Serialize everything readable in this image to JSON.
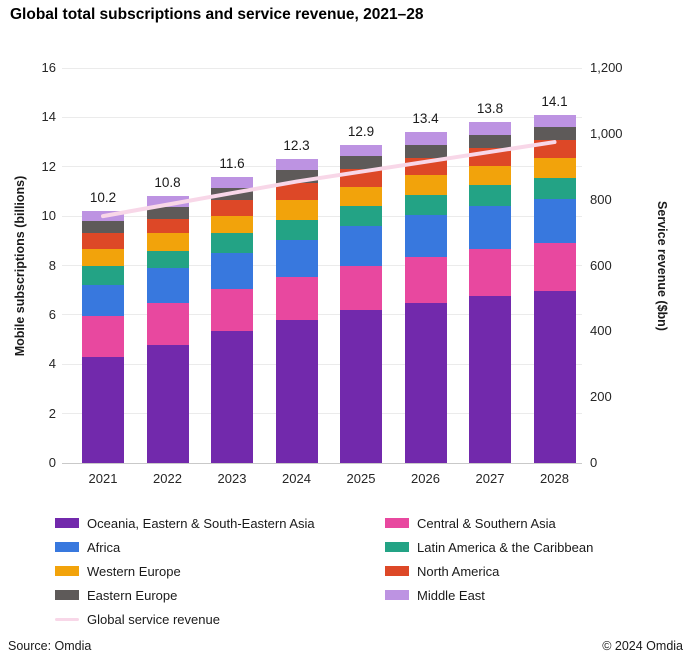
{
  "title": "Global total subscriptions and service revenue, 2021–28",
  "chart_data": {
    "type": "bar",
    "subtype": "stacked_bars_with_line_overlay",
    "title": "Global total subscriptions and service revenue, 2021–28",
    "categories": [
      "2021",
      "2022",
      "2023",
      "2024",
      "2025",
      "2026",
      "2027",
      "2028"
    ],
    "series": [
      {
        "name": "Oceania, Eastern & South-Eastern Asia",
        "color": "#7229AC",
        "values": [
          4.3,
          4.8,
          5.35,
          5.8,
          6.2,
          6.5,
          6.75,
          6.95
        ]
      },
      {
        "name": "Central & Southern Asia",
        "color": "#E8489F",
        "values": [
          1.65,
          1.7,
          1.7,
          1.75,
          1.8,
          1.85,
          1.9,
          1.95
        ]
      },
      {
        "name": "Africa",
        "color": "#3878DE",
        "values": [
          1.25,
          1.4,
          1.45,
          1.5,
          1.6,
          1.7,
          1.75,
          1.8
        ]
      },
      {
        "name": "Latin America & the Caribbean",
        "color": "#23A385",
        "values": [
          0.8,
          0.7,
          0.8,
          0.8,
          0.8,
          0.8,
          0.85,
          0.85
        ]
      },
      {
        "name": "Western Europe",
        "color": "#F2A30B",
        "values": [
          0.65,
          0.7,
          0.7,
          0.8,
          0.8,
          0.8,
          0.8,
          0.8
        ]
      },
      {
        "name": "North America",
        "color": "#DD4827",
        "values": [
          0.65,
          0.6,
          0.65,
          0.7,
          0.7,
          0.7,
          0.7,
          0.75
        ]
      },
      {
        "name": "Eastern Europe",
        "color": "#5E5A59",
        "values": [
          0.5,
          0.45,
          0.5,
          0.5,
          0.55,
          0.55,
          0.55,
          0.5
        ]
      },
      {
        "name": "Middle East",
        "color": "#BD93E2",
        "values": [
          0.4,
          0.45,
          0.45,
          0.45,
          0.45,
          0.5,
          0.5,
          0.5
        ]
      }
    ],
    "bar_total_labels": [
      "10.2",
      "10.8",
      "11.6",
      "12.3",
      "12.9",
      "13.4",
      "13.8",
      "14.1"
    ],
    "line_series": {
      "name": "Global service revenue",
      "color": "#F8D7E8",
      "axis": "right",
      "values": [
        750,
        785,
        820,
        855,
        885,
        915,
        945,
        975
      ]
    },
    "left_axis": {
      "label": "Mobile subscriptions (billions)",
      "min": 0,
      "max": 16,
      "step": 2
    },
    "right_axis": {
      "label": "Service revenue ($bn)",
      "min": 0,
      "max": 1200,
      "step": 200
    },
    "grid": true,
    "legend_position": "bottom",
    "legend_columns": [
      [
        "Oceania, Eastern & South-Eastern Asia",
        "Africa",
        "Western Europe",
        "Eastern Europe",
        "Global service revenue"
      ],
      [
        "Central & Southern Asia",
        "Latin America & the Caribbean",
        "North America",
        "Middle East"
      ]
    ]
  },
  "footer": {
    "source": "Source: Omdia",
    "copyright": "© 2024 Omdia"
  }
}
